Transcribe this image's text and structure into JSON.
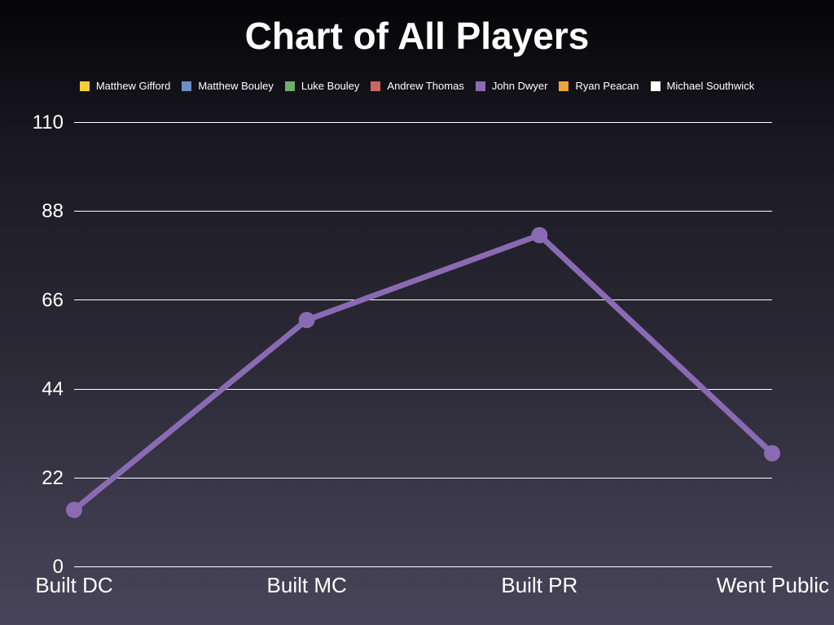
{
  "chart_data": {
    "type": "line",
    "title": "Chart of All Players",
    "categories": [
      "Built DC",
      "Built MC",
      "Built PR",
      "Went Public"
    ],
    "ylim": [
      0,
      110
    ],
    "yticks": [
      0,
      22,
      44,
      66,
      88,
      110
    ],
    "grid": true,
    "legend_placement": "top",
    "legend": [
      {
        "name": "Matthew Gifford",
        "color": "#f5cf3a"
      },
      {
        "name": "Matthew Bouley",
        "color": "#6a8fc2"
      },
      {
        "name": "Luke Bouley",
        "color": "#6fae6a"
      },
      {
        "name": "Andrew Thomas",
        "color": "#cf6461"
      },
      {
        "name": "John Dwyer",
        "color": "#8a6bb3"
      },
      {
        "name": "Ryan Peacan",
        "color": "#f2a23c"
      },
      {
        "name": "Michael Southwick",
        "color": "#ffffff"
      }
    ],
    "series": [
      {
        "name": "John Dwyer",
        "color": "#8a6bb3",
        "values": [
          14,
          61,
          82,
          28
        ]
      }
    ]
  }
}
